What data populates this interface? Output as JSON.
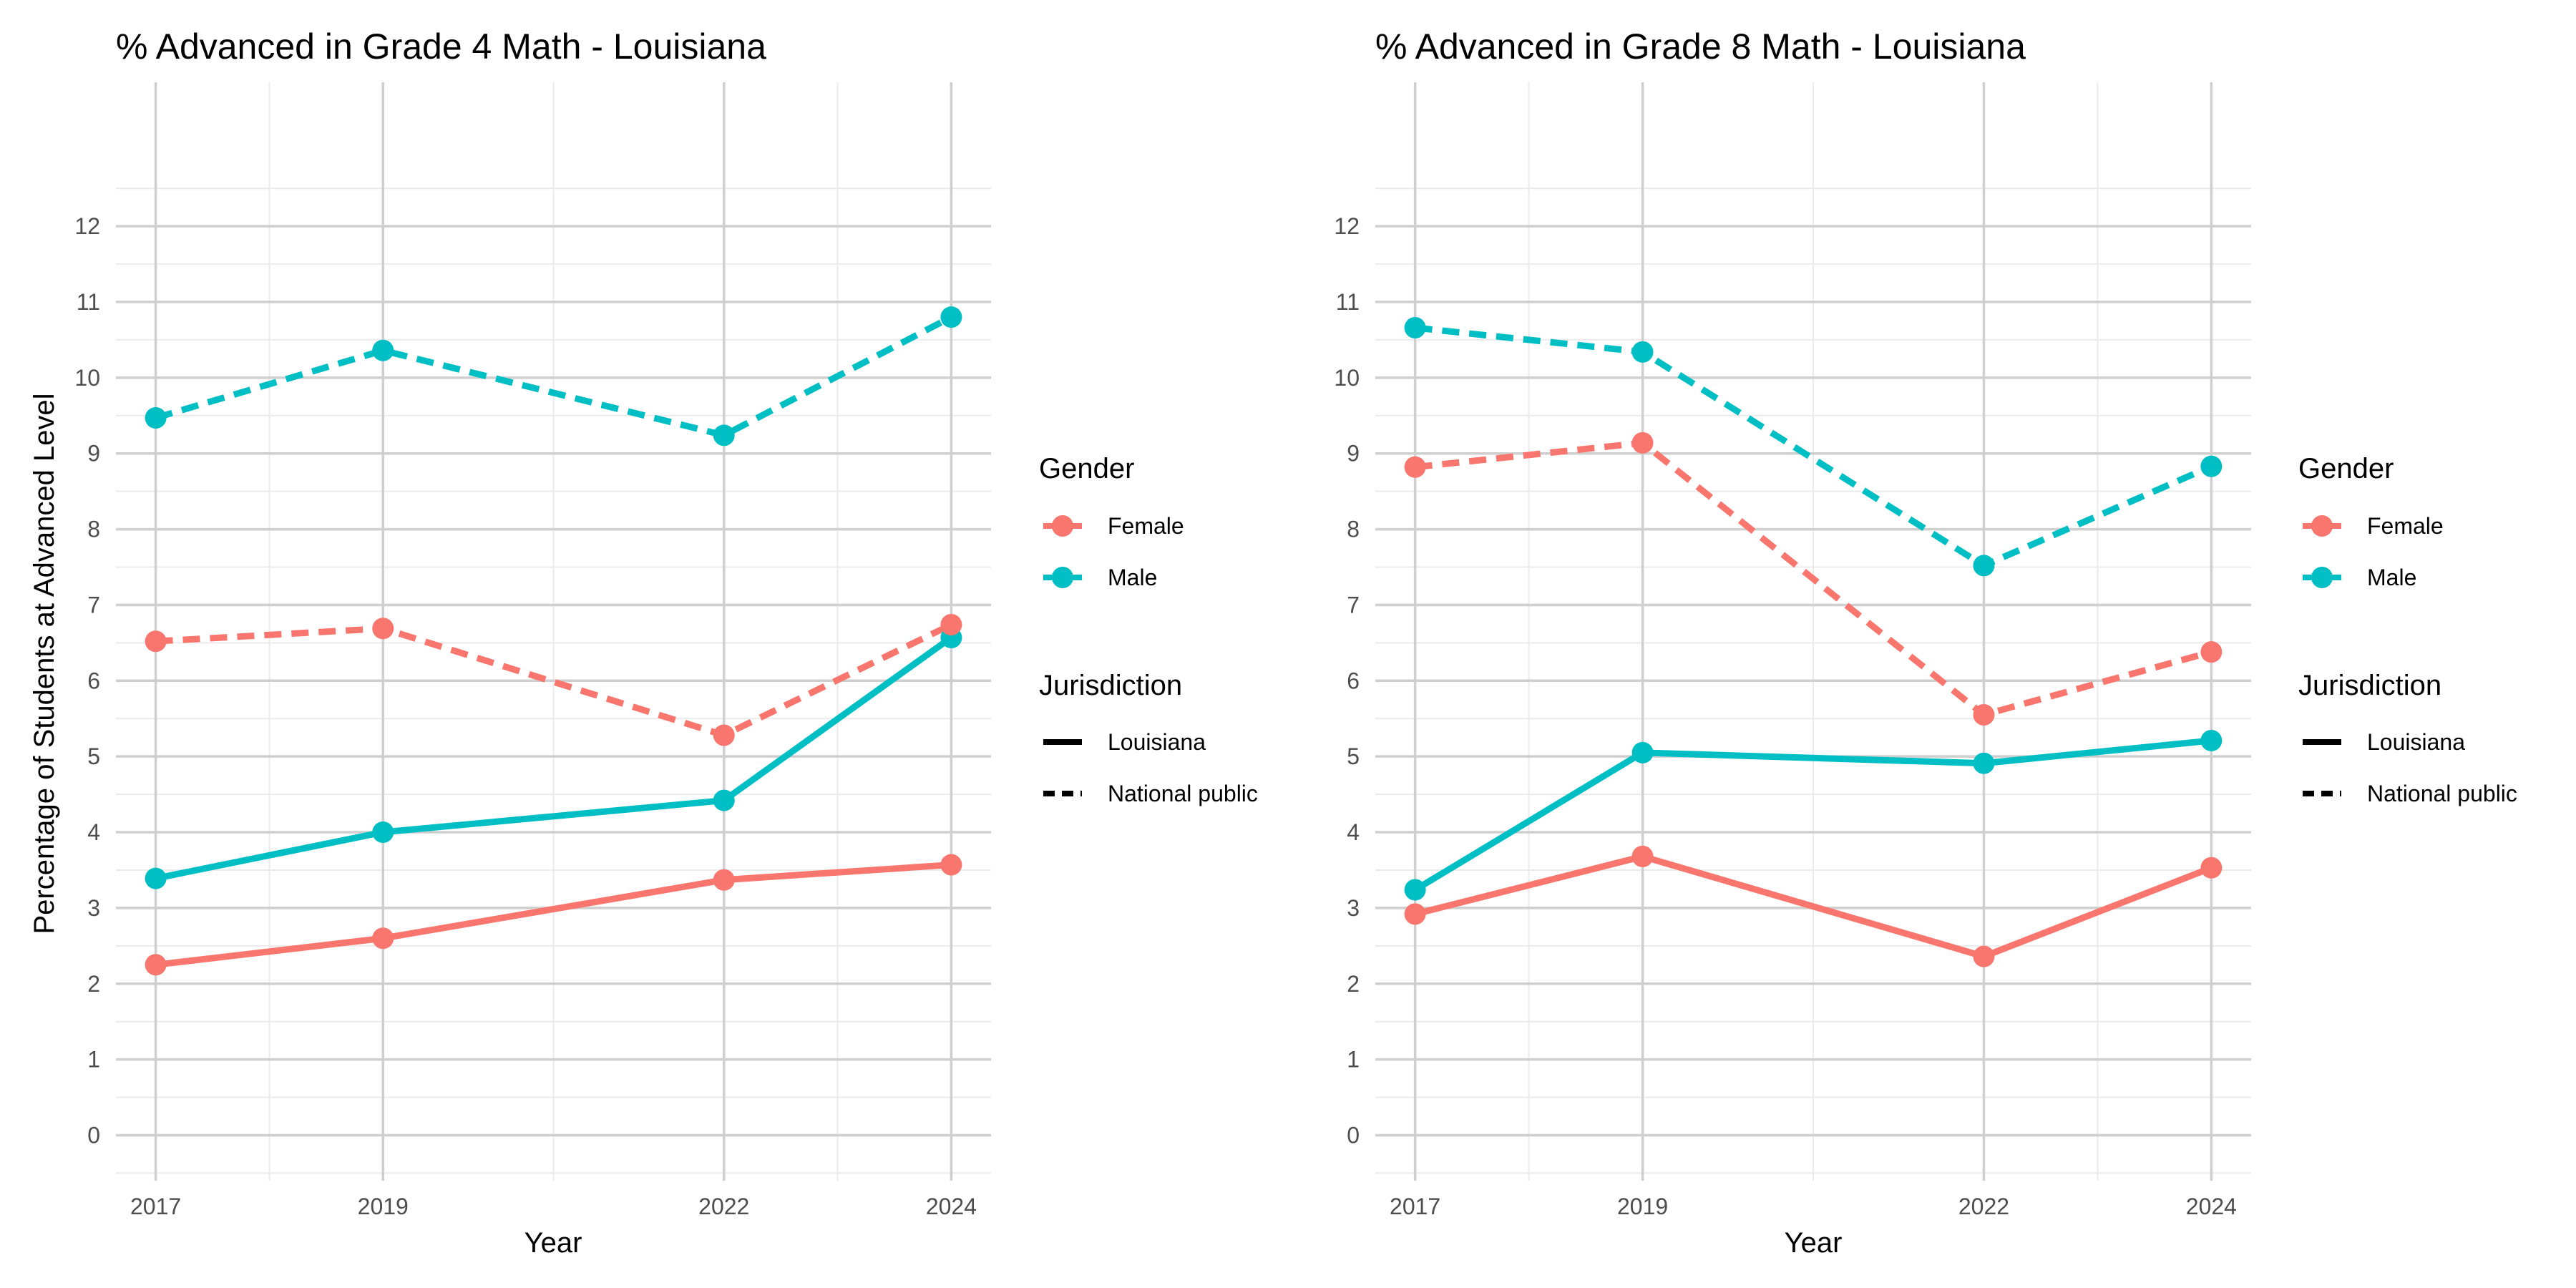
{
  "chart_data": [
    {
      "type": "line",
      "title": "% Advanced in Grade 4 Math - Louisiana",
      "xlabel": "Year",
      "ylabel": "Percentage of Students at Advanced Level",
      "x": [
        2017,
        2019,
        2022,
        2024
      ],
      "xlim": [
        2016.65,
        2024.35
      ],
      "ylim": [
        -0.6,
        13.9
      ],
      "yticks": [
        0,
        1,
        2,
        3,
        4,
        5,
        6,
        7,
        8,
        9,
        10,
        11,
        12
      ],
      "grid": true,
      "legend_placement": "right",
      "series": [
        {
          "gender": "Female",
          "jurisdiction": "Louisiana",
          "values": [
            2.25,
            2.6,
            3.37,
            3.57
          ]
        },
        {
          "gender": "Male",
          "jurisdiction": "Louisiana",
          "values": [
            3.39,
            4.0,
            4.42,
            6.57
          ]
        },
        {
          "gender": "Female",
          "jurisdiction": "National public",
          "values": [
            6.52,
            6.69,
            5.28,
            6.74
          ]
        },
        {
          "gender": "Male",
          "jurisdiction": "National public",
          "values": [
            9.47,
            10.36,
            9.24,
            10.8
          ]
        }
      ]
    },
    {
      "type": "line",
      "title": "% Advanced in Grade 8 Math - Louisiana",
      "xlabel": "Year",
      "ylabel": "",
      "x": [
        2017,
        2019,
        2022,
        2024
      ],
      "xlim": [
        2016.65,
        2024.35
      ],
      "ylim": [
        -0.6,
        13.9
      ],
      "yticks": [
        0,
        1,
        2,
        3,
        4,
        5,
        6,
        7,
        8,
        9,
        10,
        11,
        12
      ],
      "grid": true,
      "legend_placement": "right",
      "series": [
        {
          "gender": "Female",
          "jurisdiction": "Louisiana",
          "values": [
            2.92,
            3.68,
            2.36,
            3.53
          ]
        },
        {
          "gender": "Male",
          "jurisdiction": "Louisiana",
          "values": [
            3.24,
            5.05,
            4.91,
            5.21
          ]
        },
        {
          "gender": "Female",
          "jurisdiction": "National public",
          "values": [
            8.82,
            9.14,
            5.55,
            6.38
          ]
        },
        {
          "gender": "Male",
          "jurisdiction": "National public",
          "values": [
            10.66,
            10.34,
            7.52,
            8.83
          ]
        }
      ]
    }
  ],
  "legend": {
    "gender_title": "Gender",
    "gender_items": [
      {
        "label": "Female",
        "color": "#F8766D"
      },
      {
        "label": "Male",
        "color": "#00BFC4"
      }
    ],
    "jurisdiction_title": "Jurisdiction",
    "jurisdiction_items": [
      {
        "label": "Louisiana",
        "linetype": "solid"
      },
      {
        "label": "National public",
        "linetype": "dashed"
      }
    ]
  },
  "colors": {
    "Female": "#F8766D",
    "Male": "#00BFC4"
  }
}
